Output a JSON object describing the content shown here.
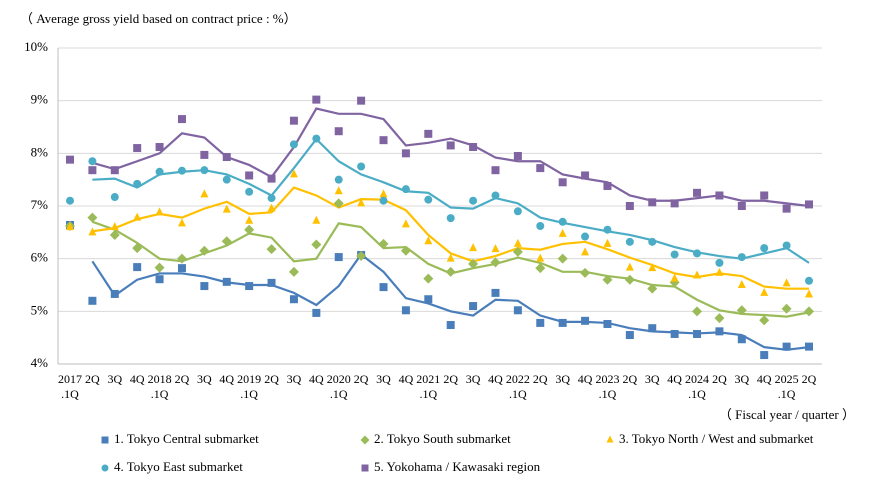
{
  "chart_data": {
    "type": "scatter-trend",
    "title": "（ Average gross yield based on contract price : %）",
    "x_label": "（ Fiscal year / quarter ）",
    "categories": [
      "2017\n.1Q",
      "2Q",
      "3Q",
      "4Q",
      "2018\n.1Q",
      "2Q",
      "3Q",
      "4Q",
      "2019\n.1Q",
      "2Q",
      "3Q",
      "4Q",
      "2020\n.1Q",
      "2Q",
      "3Q",
      "4Q",
      "2021\n.1Q",
      "2Q",
      "3Q",
      "4Q",
      "2022\n.1Q",
      "2Q",
      "3Q",
      "4Q",
      "2023\n.1Q",
      "2Q",
      "3Q",
      "4Q",
      "2024\n.1Q",
      "2Q",
      "3Q",
      "4Q",
      "2025\n.1Q",
      "2Q"
    ],
    "ylim": [
      4,
      10
    ],
    "yticks": [
      {
        "value": 4,
        "label": "4%"
      },
      {
        "value": 5,
        "label": "5%"
      },
      {
        "value": 6,
        "label": "6%"
      },
      {
        "value": 7,
        "label": "7%"
      },
      {
        "value": 8,
        "label": "8%"
      },
      {
        "value": 9,
        "label": "9%"
      },
      {
        "value": 10,
        "label": "10%"
      }
    ],
    "grid": true,
    "series": [
      {
        "name": "1. Tokyo Central submarket",
        "color": "#4a7ebb",
        "marker": "square",
        "values": [
          6.64,
          5.2,
          5.33,
          5.84,
          5.61,
          5.82,
          5.48,
          5.56,
          5.48,
          5.54,
          5.23,
          4.97,
          6.03,
          6.07,
          5.46,
          5.02,
          5.23,
          4.74,
          5.1,
          5.35,
          5.02,
          4.78,
          4.78,
          4.82,
          4.76,
          4.55,
          4.68,
          4.57,
          4.57,
          4.62,
          4.47,
          4.17,
          4.33,
          4.33
        ],
        "trend": [
          null,
          5.95,
          5.3,
          5.6,
          5.72,
          5.72,
          5.66,
          5.55,
          5.5,
          5.5,
          5.35,
          5.12,
          5.48,
          6.08,
          5.75,
          5.25,
          5.15,
          5.0,
          4.92,
          5.22,
          5.2,
          4.92,
          4.8,
          4.8,
          4.78,
          4.68,
          4.62,
          4.6,
          4.58,
          4.6,
          4.55,
          4.32,
          4.27,
          4.32
        ]
      },
      {
        "name": "2. Tokyo South submarket",
        "color": "#9bbb59",
        "marker": "diamond",
        "values": [
          6.62,
          6.78,
          6.45,
          6.2,
          5.83,
          6.0,
          6.15,
          6.33,
          6.55,
          6.18,
          5.75,
          6.27,
          7.05,
          6.05,
          6.28,
          6.15,
          5.62,
          5.75,
          5.9,
          5.93,
          6.13,
          5.82,
          6.0,
          5.73,
          5.6,
          5.6,
          5.43,
          5.55,
          5.0,
          4.87,
          5.02,
          4.83,
          5.05,
          5.0
        ],
        "trend": [
          null,
          6.7,
          6.55,
          6.3,
          6.0,
          5.95,
          6.1,
          6.25,
          6.48,
          6.4,
          5.95,
          6.0,
          6.67,
          6.6,
          6.2,
          6.22,
          5.9,
          5.72,
          5.82,
          5.9,
          6.02,
          5.92,
          5.75,
          5.75,
          5.67,
          5.62,
          5.5,
          5.47,
          5.22,
          5.02,
          4.95,
          4.93,
          4.9,
          4.98
        ]
      },
      {
        "name": "3. Tokyo North / West and  submarket",
        "color": "#ffc000",
        "marker": "triangle",
        "values": [
          6.6,
          6.5,
          6.6,
          6.78,
          6.88,
          6.67,
          7.22,
          6.93,
          6.72,
          6.95,
          7.6,
          6.72,
          7.28,
          7.05,
          7.22,
          6.65,
          6.33,
          6.0,
          6.2,
          6.18,
          6.28,
          6.0,
          6.47,
          6.12,
          6.28,
          5.83,
          5.82,
          5.62,
          5.68,
          5.73,
          5.5,
          5.35,
          5.53,
          5.32
        ],
        "trend": [
          null,
          6.52,
          6.58,
          6.75,
          6.85,
          6.78,
          6.95,
          7.08,
          6.85,
          6.88,
          7.35,
          7.2,
          6.97,
          7.13,
          7.12,
          6.92,
          6.45,
          6.1,
          5.95,
          6.05,
          6.2,
          6.17,
          6.28,
          6.32,
          6.18,
          6.02,
          5.88,
          5.72,
          5.65,
          5.72,
          5.67,
          5.47,
          5.43,
          5.43
        ]
      },
      {
        "name": "4. Tokyo East submarket",
        "color": "#4bacc6",
        "marker": "circle",
        "values": [
          7.1,
          7.85,
          7.17,
          7.42,
          7.65,
          7.67,
          7.68,
          7.5,
          7.27,
          7.15,
          8.17,
          8.28,
          7.5,
          7.75,
          7.1,
          7.32,
          7.12,
          6.77,
          7.1,
          7.2,
          6.9,
          6.62,
          6.7,
          6.42,
          6.55,
          6.32,
          6.32,
          6.08,
          6.1,
          5.92,
          6.03,
          6.2,
          6.25,
          5.58
        ],
        "trend": [
          null,
          7.5,
          7.52,
          7.35,
          7.6,
          7.65,
          7.68,
          7.6,
          7.42,
          7.2,
          7.72,
          8.27,
          7.85,
          7.6,
          7.45,
          7.28,
          7.25,
          6.97,
          6.95,
          7.15,
          7.05,
          6.78,
          6.68,
          6.6,
          6.52,
          6.45,
          6.35,
          6.22,
          6.12,
          6.05,
          6.0,
          6.1,
          6.2,
          5.92
        ]
      },
      {
        "name": "5. Yokohama / Kawasaki region",
        "color": "#8064a2",
        "marker": "square",
        "values": [
          7.88,
          7.68,
          7.68,
          8.1,
          8.12,
          8.65,
          7.97,
          7.93,
          7.58,
          7.52,
          8.62,
          9.02,
          8.42,
          9.0,
          8.25,
          8.0,
          8.37,
          8.15,
          8.12,
          7.68,
          7.95,
          7.72,
          7.45,
          7.58,
          7.38,
          7.0,
          7.07,
          7.05,
          7.25,
          7.2,
          7.0,
          7.2,
          6.95,
          7.03
        ],
        "trend": [
          null,
          7.82,
          7.7,
          7.85,
          8.0,
          8.38,
          8.3,
          7.93,
          7.78,
          7.55,
          8.12,
          8.85,
          8.75,
          8.75,
          8.65,
          8.15,
          8.2,
          8.28,
          8.15,
          7.92,
          7.85,
          7.85,
          7.6,
          7.52,
          7.45,
          7.2,
          7.1,
          7.1,
          7.15,
          7.2,
          7.1,
          7.1,
          7.05,
          7.0
        ]
      }
    ]
  }
}
